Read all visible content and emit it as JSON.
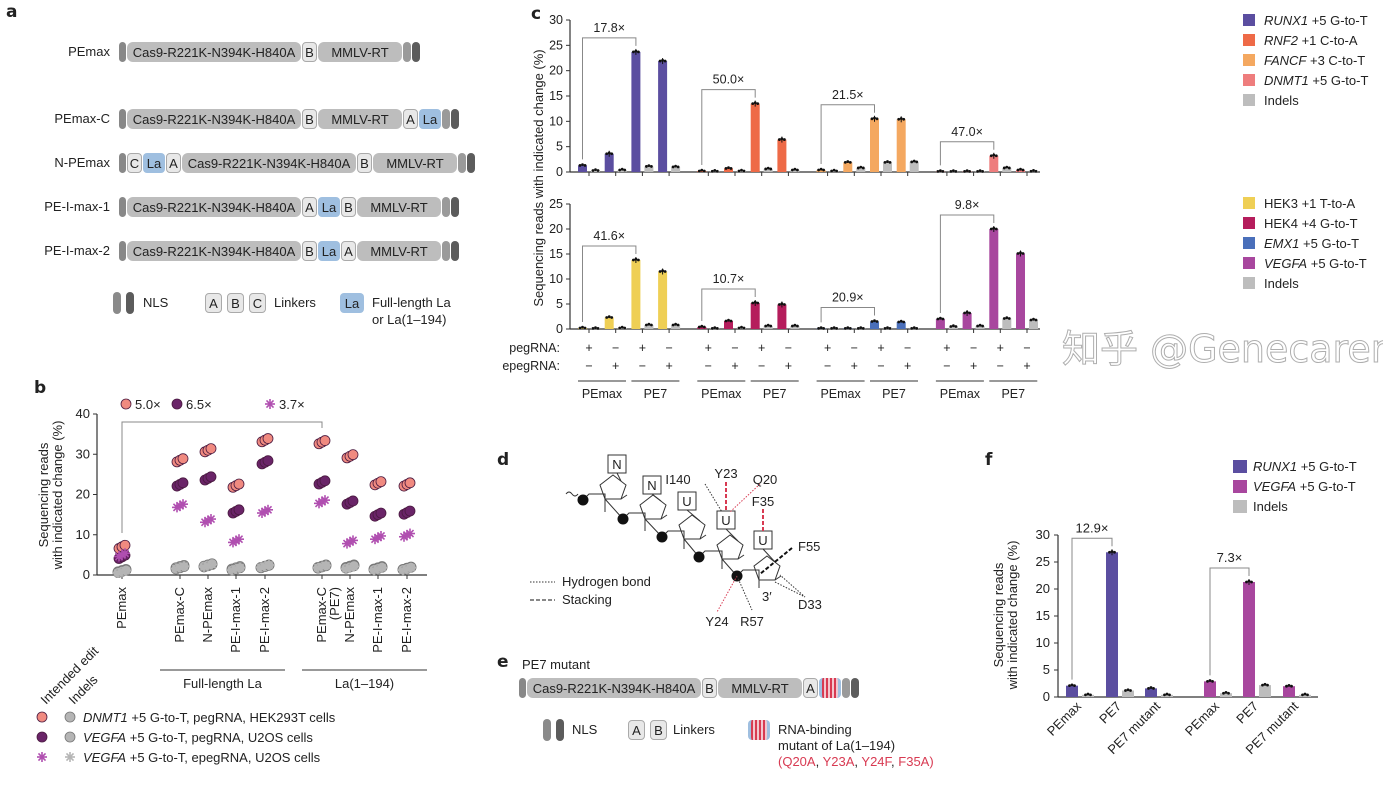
{
  "panel_labels": {
    "a": "a",
    "b": "b",
    "c": "c",
    "d": "d",
    "e": "e",
    "f": "f"
  },
  "panel_a": {
    "constructs": [
      {
        "name": "PEmax",
        "segments": [
          {
            "t": "nls-start"
          },
          {
            "t": "cas9",
            "text": "Cas9-R221K-N394K-H840A"
          },
          {
            "t": "linker",
            "text": "B"
          },
          {
            "t": "rt",
            "text": "MMLV-RT"
          },
          {
            "t": "nls-end"
          }
        ]
      },
      {
        "name": "PEmax-C",
        "segments": [
          {
            "t": "nls-start"
          },
          {
            "t": "cas9",
            "text": "Cas9-R221K-N394K-H840A"
          },
          {
            "t": "linker",
            "text": "B"
          },
          {
            "t": "rt",
            "text": "MMLV-RT"
          },
          {
            "t": "linker",
            "text": "A"
          },
          {
            "t": "la",
            "text": "La"
          },
          {
            "t": "nls-end"
          }
        ]
      },
      {
        "name": "N-PEmax",
        "segments": [
          {
            "t": "nls-start"
          },
          {
            "t": "linker",
            "text": "C"
          },
          {
            "t": "la",
            "text": "La"
          },
          {
            "t": "linker",
            "text": "A"
          },
          {
            "t": "cas9",
            "text": "Cas9-R221K-N394K-H840A"
          },
          {
            "t": "linker",
            "text": "B"
          },
          {
            "t": "rt",
            "text": "MMLV-RT"
          },
          {
            "t": "nls-end"
          }
        ]
      },
      {
        "name": "PE-I-max-1",
        "segments": [
          {
            "t": "nls-start"
          },
          {
            "t": "cas9",
            "text": "Cas9-R221K-N394K-H840A"
          },
          {
            "t": "linker",
            "text": "A"
          },
          {
            "t": "la",
            "text": "La"
          },
          {
            "t": "linker",
            "text": "B"
          },
          {
            "t": "rt",
            "text": "MMLV-RT"
          },
          {
            "t": "nls-end"
          }
        ]
      },
      {
        "name": "PE-I-max-2",
        "segments": [
          {
            "t": "nls-start"
          },
          {
            "t": "cas9",
            "text": "Cas9-R221K-N394K-H840A"
          },
          {
            "t": "linker",
            "text": "B"
          },
          {
            "t": "la",
            "text": "La"
          },
          {
            "t": "linker",
            "text": "A"
          },
          {
            "t": "rt",
            "text": "MMLV-RT"
          },
          {
            "t": "nls-end"
          }
        ]
      }
    ],
    "legend": {
      "nls": "NLS",
      "linkers": [
        "A",
        "B",
        "C"
      ],
      "linkers_label": "Linkers",
      "la": "La",
      "la_label_1": "Full-length La",
      "la_label_2": "or La(1–194)"
    }
  },
  "panel_e": {
    "title": "PE7 mutant",
    "construct": {
      "segments": [
        {
          "t": "nls-start"
        },
        {
          "t": "cas9",
          "text": "Cas9-R221K-N394K-H840A"
        },
        {
          "t": "linker",
          "text": "B"
        },
        {
          "t": "rt",
          "text": "MMLV-RT"
        },
        {
          "t": "linker",
          "text": "A"
        },
        {
          "t": "mut"
        },
        {
          "t": "nls-end"
        }
      ]
    },
    "legend": {
      "nls": "NLS",
      "linkers": [
        "A",
        "B"
      ],
      "linkers_label": "Linkers",
      "mut_label_1": "RNA-binding",
      "mut_label_2": "mutant of La(1–194)",
      "mutations": [
        "Q20A",
        "Y23A",
        "Y24F",
        "F35A"
      ],
      "paren_open": "(",
      "paren_close": ")",
      "sep": ", "
    }
  },
  "panel_d": {
    "bases": [
      "N",
      "N",
      "U",
      "U",
      "U"
    ],
    "residues_black": {
      "i140": "I140",
      "f55": "F55",
      "d33": "D33",
      "r57": "R57",
      "three_prime": "3′"
    },
    "residues_red": {
      "y23": "Y23",
      "q20": "Q20",
      "f35": "F35",
      "y24": "Y24"
    },
    "legend": {
      "hbond": "Hydrogen bond",
      "stacking": "Stacking"
    },
    "red_color": "#d83a52"
  },
  "watermark": "知乎 @Genecarer",
  "chart_data": [
    {
      "id": "b",
      "type": "scatter",
      "ylabel_1": "Sequencing reads",
      "ylabel_2": "with indicated change (%)",
      "ylim": [
        0,
        40
      ],
      "yticks": [
        "0",
        "10",
        "20",
        "30",
        "40"
      ],
      "categories": [
        "PEmax",
        "PEmax-C",
        "N-PEmax",
        "PE-I-max-1",
        "PE-I-max-2",
        "PEmax-C",
        "N-PEmax",
        "PE-I-max-1",
        "PE-I-max-2"
      ],
      "category_sub": {
        "5": "(PE7)"
      },
      "groups": [
        {
          "label": "Full-length La",
          "from": 1,
          "to": 4
        },
        {
          "label": "La(1–194)",
          "from": 5,
          "to": 8
        }
      ],
      "column_headers": {
        "edit": "Intended edit",
        "indel": "Indels"
      },
      "series": [
        {
          "key": "dnmt1",
          "gene": "DNMT1",
          "desc": " +5 G-to-T, pegRNA, HEK293T cells",
          "color": "#f08a80",
          "marker": "circle",
          "fold_change": "5.0×",
          "edit_values": [
            7.0,
            28.5,
            31.0,
            22.2,
            33.5,
            33.0,
            29.5,
            22.8,
            22.5
          ],
          "indel_values": [
            0.8,
            1.8,
            2.0,
            1.5,
            1.9,
            1.9,
            1.9,
            1.5,
            1.4
          ]
        },
        {
          "key": "vegfa_peg",
          "gene": "VEGFA",
          "desc": " +5 G-to-T, pegRNA, U2OS cells",
          "color": "#6a2468",
          "marker": "hatched-circle",
          "fold_change": "6.5×",
          "edit_values": [
            4.5,
            22.5,
            24.0,
            15.8,
            28.0,
            23.0,
            18.0,
            15.0,
            15.5
          ],
          "indel_values": [
            0.6,
            1.5,
            2.2,
            1.2,
            1.8,
            1.7,
            1.7,
            1.3,
            1.3
          ]
        },
        {
          "key": "vegfa_epeg",
          "gene": "VEGFA",
          "desc": " +5 G-to-T, epegRNA, U2OS cells",
          "color": "#b04fb0",
          "marker": "asterisk",
          "fold_change": "3.7×",
          "edit_values": [
            5.0,
            17.2,
            13.5,
            8.5,
            15.8,
            18.2,
            8.2,
            9.3,
            9.9
          ],
          "indel_values": [
            0.5,
            1.6,
            2.0,
            1.2,
            1.9,
            1.8,
            1.5,
            1.2,
            1.2
          ]
        }
      ],
      "indel_color": "#b5b5b5"
    },
    {
      "id": "c_top",
      "type": "bar",
      "ylim": [
        0,
        30
      ],
      "yticks": [
        "0",
        "5",
        "10",
        "15",
        "20",
        "25",
        "30"
      ],
      "ylabel": "Sequencing reads with indicated change (%)",
      "series": [
        {
          "gene": "RUNX1",
          "italic": true,
          "edit": " +5 G-to-T",
          "color": "#5b4ea0",
          "fold_change": "17.8×",
          "edit_values": [
            1.3,
            3.6,
            23.7,
            21.9
          ],
          "indel_values": [
            0.3,
            0.4,
            1.1,
            1.0
          ]
        },
        {
          "gene": "RNF2",
          "italic": true,
          "edit": " +1 C-to-A",
          "color": "#ee6a47",
          "fold_change": "50.0×",
          "edit_values": [
            0.2,
            0.7,
            13.5,
            6.4
          ],
          "indel_values": [
            0.15,
            0.2,
            0.6,
            0.4
          ]
        },
        {
          "gene": "FANCF",
          "italic": true,
          "edit": " +3 C-to-T",
          "color": "#f4a860",
          "fold_change": "21.5×",
          "edit_values": [
            0.4,
            1.9,
            10.5,
            10.4
          ],
          "indel_values": [
            0.2,
            0.8,
            1.9,
            2.0
          ]
        },
        {
          "gene": "DNMT1",
          "italic": true,
          "edit": " +5 G-to-T",
          "color": "#ee7d7d",
          "fold_change": "47.0×",
          "edit_values": [
            0.05,
            0.05,
            3.2,
            0.4
          ],
          "indel_values": [
            0.1,
            0.1,
            0.8,
            0.15
          ]
        }
      ],
      "indel_label": "Indels",
      "indel_color": "#bdbdbd"
    },
    {
      "id": "c_bottom",
      "type": "bar",
      "ylim": [
        0,
        25
      ],
      "yticks": [
        "0",
        "5",
        "10",
        "15",
        "20",
        "25"
      ],
      "series": [
        {
          "gene": "HEK3",
          "italic": false,
          "edit": " +1 T-to-A",
          "color": "#efcf55",
          "fold_change": "41.6×",
          "edit_values": [
            0.2,
            2.3,
            13.8,
            11.5
          ],
          "indel_values": [
            0.05,
            0.2,
            0.8,
            0.8
          ]
        },
        {
          "gene": "HEK4",
          "italic": false,
          "edit": " +4 G-to-T",
          "color": "#b51d5c",
          "fold_change": "10.7×",
          "edit_values": [
            0.4,
            1.6,
            5.2,
            4.9
          ],
          "indel_values": [
            0.1,
            0.2,
            0.6,
            0.6
          ]
        },
        {
          "gene": "EMX1",
          "italic": true,
          "edit": " +5 G-to-T",
          "color": "#4a6fba",
          "fold_change": "20.9×",
          "edit_values": [
            0.02,
            0.05,
            1.5,
            1.4
          ],
          "indel_values": [
            0.02,
            0.02,
            0.05,
            0.1
          ]
        },
        {
          "gene": "VEGFA",
          "italic": true,
          "edit": " +5 G-to-T",
          "color": "#a8479e",
          "fold_change": "9.8×",
          "edit_values": [
            2.0,
            3.2,
            20.0,
            15.1
          ],
          "indel_values": [
            0.5,
            0.6,
            2.1,
            1.8
          ]
        }
      ],
      "indel_label": "Indels",
      "indel_color": "#bdbdbd",
      "row_labels": {
        "peg": "pegRNA:",
        "epeg": "epegRNA:"
      },
      "conditions": [
        {
          "editor": "PEmax",
          "pegRNA": "+",
          "epegRNA": "−"
        },
        {
          "editor": "PEmax",
          "pegRNA": "−",
          "epegRNA": "+"
        },
        {
          "editor": "PE7",
          "pegRNA": "+",
          "epegRNA": "−"
        },
        {
          "editor": "PE7",
          "pegRNA": "−",
          "epegRNA": "+"
        }
      ],
      "editors": [
        "PEmax",
        "PE7"
      ]
    },
    {
      "id": "f",
      "type": "bar",
      "ylim": [
        0,
        30
      ],
      "yticks": [
        "0",
        "5",
        "10",
        "15",
        "20",
        "25",
        "30"
      ],
      "ylabel_1": "Sequencing reads",
      "ylabel_2": "with indicated change (%)",
      "categories": [
        "PEmax",
        "PE7",
        "PE7 mutant"
      ],
      "series": [
        {
          "gene": "RUNX1",
          "italic": true,
          "edit": " +5 G-to-T",
          "color": "#5b4ea0",
          "fold_change": "12.9×",
          "edit_values": [
            2.1,
            26.8,
            1.6
          ],
          "indel_values": [
            0.4,
            1.2,
            0.4
          ]
        },
        {
          "gene": "VEGFA",
          "italic": true,
          "edit": " +5 G-to-T",
          "color": "#a8479e",
          "fold_change": "7.3×",
          "edit_values": [
            2.9,
            21.3,
            2.0
          ],
          "indel_values": [
            0.7,
            2.2,
            0.4
          ]
        }
      ],
      "indel_label": "Indels",
      "indel_color": "#bdbdbd"
    }
  ]
}
